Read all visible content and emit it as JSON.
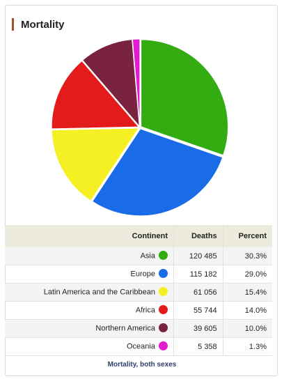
{
  "panel": {
    "title": "Mortality",
    "footer": "Mortality, both sexes"
  },
  "table": {
    "headers": {
      "continent": "Continent",
      "deaths": "Deaths",
      "percent": "Percent"
    }
  },
  "chart_data": {
    "type": "pie",
    "categories": [
      "Asia",
      "Europe",
      "Latin America and the Caribbean",
      "Africa",
      "Northern America",
      "Oceania"
    ],
    "values": [
      120485,
      115182,
      61056,
      55744,
      39605,
      5358
    ],
    "deaths_display": [
      "120 485",
      "115 182",
      "61 056",
      "55 744",
      "39 605",
      "5 358"
    ],
    "percents": [
      "30.3%",
      "29.0%",
      "15.4%",
      "14.0%",
      "10.0%",
      "1.3%"
    ],
    "colors": [
      "#33ac12",
      "#1a6be8",
      "#f4f024",
      "#e41b1b",
      "#7a2340",
      "#e21bcf"
    ]
  }
}
